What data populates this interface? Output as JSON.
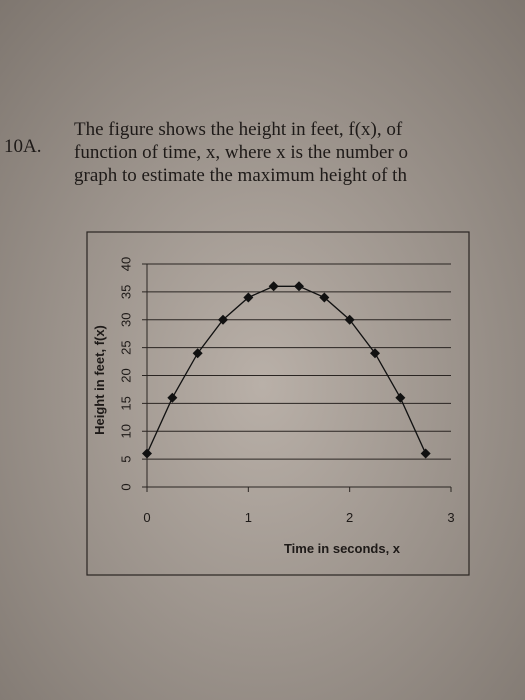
{
  "problem": {
    "number": "10A.",
    "lines": [
      "The figure shows the height in feet, f(x), of",
      "function of time, x, where x is the number o",
      "graph to estimate the maximum height of th"
    ]
  },
  "chart_data": {
    "type": "line",
    "xlabel": "Time in seconds, x",
    "ylabel": "Height in feet, f(x)",
    "x": [
      0,
      0.25,
      0.5,
      0.75,
      1,
      1.25,
      1.5,
      1.75,
      2,
      2.25,
      2.5,
      2.75
    ],
    "series": [
      {
        "color": "#111111",
        "values": [
          6,
          16,
          24,
          30,
          34,
          36,
          36,
          34,
          30,
          24,
          16,
          6
        ]
      }
    ],
    "xlim": [
      0,
      3
    ],
    "xticks": [
      0,
      1,
      2,
      3
    ],
    "ylim": [
      0,
      40
    ],
    "yticks": [
      0,
      5,
      10,
      15,
      20,
      25,
      30,
      35,
      40
    ],
    "grid": true
  }
}
